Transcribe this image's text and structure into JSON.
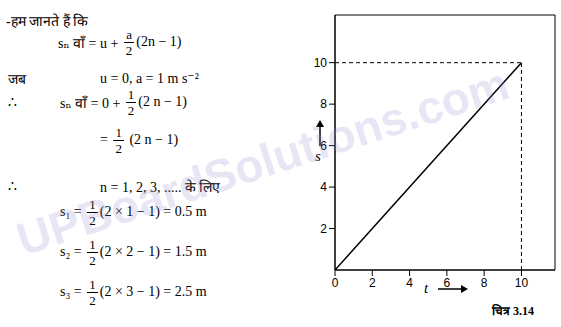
{
  "text": {
    "lines": [
      {
        "left": "",
        "parts": [
          "-हम जानते हैं कि"
        ]
      },
      {
        "left": "",
        "parts": [
          "sₙ वाँ = u + ",
          {
            "num": "a",
            "den": "2"
          },
          "(2n − 1)"
        ]
      },
      {
        "left": "जब",
        "parts": [
          "u = 0, a = 1 m s⁻²"
        ]
      },
      {
        "left": "∴",
        "parts": [
          "sₙ वाँ = 0 + ",
          {
            "num": "1",
            "den": "2"
          },
          "(2 n − 1)"
        ]
      },
      {
        "left": "",
        "parts": [
          "= ",
          {
            "num": "1",
            "den": "2"
          },
          " (2 n − 1)"
        ]
      },
      {
        "left": "∴",
        "parts": [
          "n = 1, 2, 3, ..... के लिए"
        ]
      },
      {
        "left": "",
        "parts": [
          "s₁ = ",
          {
            "num": "1",
            "den": "2"
          },
          "(2 × 1 − 1) = 0.5 m"
        ]
      },
      {
        "left": "",
        "parts": [
          "s₂ = ",
          {
            "num": "1",
            "den": "2"
          },
          "(2 × 2 − 1) = 1.5 m"
        ]
      },
      {
        "left": "",
        "parts": [
          "s₃ = ",
          {
            "num": "1",
            "den": "2"
          },
          "(2 × 3 − 1) = 2.5 m"
        ]
      }
    ],
    "watermark": "UPBoardSolutions.com"
  },
  "chart_data": {
    "type": "line",
    "x_label": "t",
    "y_label": "s",
    "caption": "चित्र 3.14",
    "x": [
      0,
      10
    ],
    "values": [
      0,
      10
    ],
    "color": "#000000",
    "xlim": [
      0,
      11.8
    ],
    "ylim": [
      0,
      12.3
    ],
    "xticks": [
      0,
      2,
      4,
      6,
      8,
      10
    ],
    "yticks": [
      2,
      4,
      6,
      8,
      10
    ],
    "grid": false
  }
}
